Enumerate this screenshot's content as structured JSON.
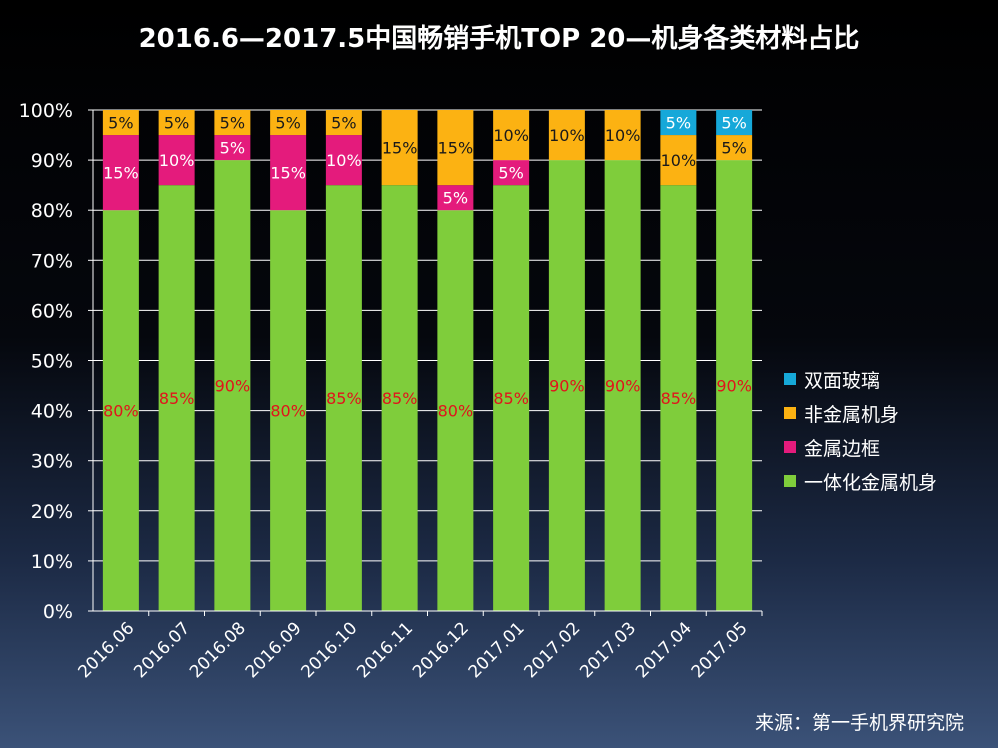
{
  "title": "2016.6—2017.5中国畅销手机TOP 20—机身各类材料占比",
  "source": "来源：第一手机界研究院",
  "chart_data": {
    "type": "bar",
    "stacked": true,
    "title": "2016.6—2017.5中国畅销手机TOP 20—机身各类材料占比",
    "categories": [
      "2016.06",
      "2016.07",
      "2016.08",
      "2016.09",
      "2016.10",
      "2016.11",
      "2016.12",
      "2017.01",
      "2017.02",
      "2017.03",
      "2017.04",
      "2017.05"
    ],
    "y_ticks": [
      "0%",
      "10%",
      "20%",
      "30%",
      "40%",
      "50%",
      "60%",
      "70%",
      "80%",
      "90%",
      "100%"
    ],
    "ylim": [
      0,
      100
    ],
    "legend_position": "right",
    "series": [
      {
        "name": "一体化金属机身",
        "color": "#7fcd3b",
        "label_color": "#e0141c",
        "values": [
          80,
          85,
          90,
          80,
          85,
          85,
          80,
          85,
          90,
          90,
          85,
          90
        ],
        "labels": [
          "80%",
          "85%",
          "90%",
          "80%",
          "85%",
          "85%",
          "80%",
          "85%",
          "90%",
          "90%",
          "85%",
          "90%"
        ]
      },
      {
        "name": "金属边框",
        "color": "#e41b7c",
        "label_color": "#ffffff",
        "values": [
          15,
          10,
          5,
          15,
          10,
          0,
          5,
          5,
          0,
          0,
          0,
          0
        ],
        "labels": [
          "15%",
          "10%",
          "5%",
          "15%",
          "10%",
          "",
          "5%",
          "5%",
          "",
          "",
          "",
          ""
        ]
      },
      {
        "name": "非金属机身",
        "color": "#fcb212",
        "label_color": "#1a1a1a",
        "values": [
          5,
          5,
          5,
          5,
          5,
          15,
          15,
          10,
          10,
          10,
          10,
          5
        ],
        "labels": [
          "5%",
          "5%",
          "5%",
          "5%",
          "5%",
          "15%",
          "15%",
          "10%",
          "10%",
          "10%",
          "10%",
          "5%"
        ]
      },
      {
        "name": "双面玻璃",
        "color": "#16a8d9",
        "label_color": "#ffffff",
        "values": [
          0,
          0,
          0,
          0,
          0,
          0,
          0,
          0,
          0,
          0,
          5,
          5
        ],
        "labels": [
          "",
          "",
          "",
          "",
          "",
          "",
          "",
          "",
          "",
          "",
          "5%",
          "5%"
        ]
      }
    ],
    "legend_order": [
      "双面玻璃",
      "非金属机身",
      "金属边框",
      "一体化金属机身"
    ]
  }
}
